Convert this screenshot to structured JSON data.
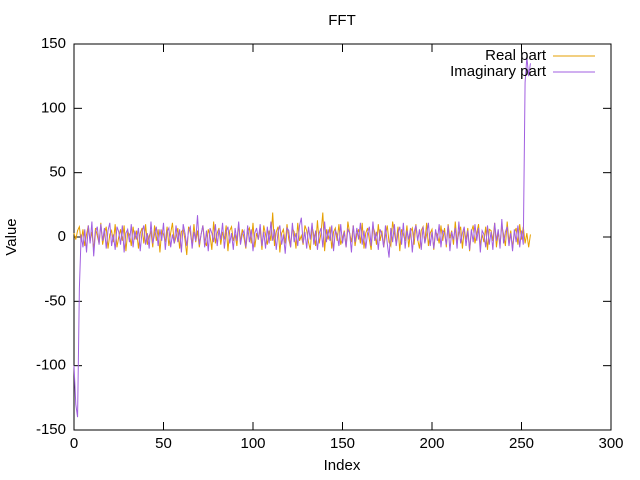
{
  "chart_data": {
    "type": "line",
    "title": "FFT",
    "xlabel": "Index",
    "ylabel": "Value",
    "xlim": [
      0,
      300
    ],
    "xticks": [
      0,
      50,
      100,
      150,
      200,
      250,
      300
    ],
    "ylim": [
      -150,
      150
    ],
    "yticks": [
      -150,
      -100,
      -50,
      0,
      50,
      100,
      150
    ],
    "grid": false,
    "legend": "top-right",
    "x": [
      0,
      1,
      2,
      3,
      4,
      5,
      6,
      7,
      8,
      9,
      10,
      11,
      12,
      13,
      14,
      15,
      16,
      17,
      18,
      19,
      20,
      21,
      22,
      23,
      24,
      25,
      26,
      27,
      28,
      29,
      30,
      31,
      32,
      33,
      34,
      35,
      36,
      37,
      38,
      39,
      40,
      41,
      42,
      43,
      44,
      45,
      46,
      47,
      48,
      49,
      50,
      51,
      52,
      53,
      54,
      55,
      56,
      57,
      58,
      59,
      60,
      61,
      62,
      63,
      64,
      65,
      66,
      67,
      68,
      69,
      70,
      71,
      72,
      73,
      74,
      75,
      76,
      77,
      78,
      79,
      80,
      81,
      82,
      83,
      84,
      85,
      86,
      87,
      88,
      89,
      90,
      91,
      92,
      93,
      94,
      95,
      96,
      97,
      98,
      99,
      100,
      101,
      102,
      103,
      104,
      105,
      106,
      107,
      108,
      109,
      110,
      111,
      112,
      113,
      114,
      115,
      116,
      117,
      118,
      119,
      120,
      121,
      122,
      123,
      124,
      125,
      126,
      127,
      128,
      129,
      130,
      131,
      132,
      133,
      134,
      135,
      136,
      137,
      138,
      139,
      140,
      141,
      142,
      143,
      144,
      145,
      146,
      147,
      148,
      149,
      150,
      151,
      152,
      153,
      154,
      155,
      156,
      157,
      158,
      159,
      160,
      161,
      162,
      163,
      164,
      165,
      166,
      167,
      168,
      169,
      170,
      171,
      172,
      173,
      174,
      175,
      176,
      177,
      178,
      179,
      180,
      181,
      182,
      183,
      184,
      185,
      186,
      187,
      188,
      189,
      190,
      191,
      192,
      193,
      194,
      195,
      196,
      197,
      198,
      199,
      200,
      201,
      202,
      203,
      204,
      205,
      206,
      207,
      208,
      209,
      210,
      211,
      212,
      213,
      214,
      215,
      216,
      217,
      218,
      219,
      220,
      221,
      222,
      223,
      224,
      225,
      226,
      227,
      228,
      229,
      230,
      231,
      232,
      233,
      234,
      235,
      236,
      237,
      238,
      239,
      240,
      241,
      242,
      243,
      244,
      245,
      246,
      247,
      248,
      249,
      250,
      251,
      252,
      253,
      254,
      255
    ],
    "series": [
      {
        "name": "Real part",
        "color": "#e69f00",
        "values": [
          3,
          -2,
          5,
          8,
          -4,
          6,
          -7,
          2,
          9,
          -3,
          4,
          -10,
          7,
          1,
          -5,
          11,
          -6,
          3,
          8,
          -9,
          2,
          5,
          -4,
          10,
          -8,
          0,
          6,
          -3,
          9,
          -11,
          4,
          2,
          -7,
          8,
          -2,
          5,
          -9,
          3,
          7,
          -5,
          10,
          -6,
          1,
          4,
          -8,
          9,
          -3,
          6,
          -12,
          5,
          2,
          -4,
          8,
          -7,
          3,
          11,
          -5,
          0,
          7,
          -9,
          4,
          6,
          -2,
          -14,
          8,
          3,
          -6,
          10,
          -4,
          5,
          -8,
          2,
          9,
          -3,
          -7,
          6,
          1,
          -10,
          12,
          -5,
          3,
          7,
          -6,
          4,
          -2,
          9,
          -11,
          5,
          8,
          -3,
          2,
          -7,
          10,
          -4,
          6,
          -1,
          -9,
          4,
          7,
          -5,
          11,
          -8,
          3,
          -2,
          6,
          -10,
          9,
          2,
          -6,
          5,
          -3,
          19,
          -7,
          4,
          8,
          -12,
          3,
          6,
          -5,
          10,
          -2,
          -8,
          7,
          4,
          -9,
          11,
          -3,
          1,
          -6,
          9,
          5,
          -4,
          -10,
          8,
          2,
          -7,
          13,
          -5,
          3,
          19,
          -11,
          6,
          -2,
          8,
          -9,
          4,
          7,
          -3,
          10,
          -6,
          -1,
          5,
          -8,
          12,
          3,
          -4,
          9,
          -7,
          2,
          6,
          -5,
          11,
          -9,
          3,
          7,
          -2,
          -10,
          8,
          4,
          -6,
          10,
          -3,
          5,
          -8,
          1,
          9,
          -4,
          -7,
          12,
          3,
          -5,
          8,
          -11,
          6,
          2,
          -3,
          9,
          -8,
          4,
          7,
          -6,
          10,
          -2,
          -9,
          5,
          8,
          -4,
          11,
          -7,
          3,
          6,
          -10,
          4,
          2,
          -5,
          9,
          -3,
          7,
          -8,
          10,
          -1,
          5,
          -6,
          12,
          -4,
          3,
          8,
          -9,
          6,
          -2,
          7,
          -11,
          4,
          9,
          -5,
          3,
          10,
          -7,
          2,
          -4,
          8,
          -10,
          6,
          5,
          -3,
          11,
          -8,
          4,
          -6,
          9,
          2,
          -7,
          12,
          -4,
          5,
          -9,
          3,
          7,
          -6,
          10,
          -2,
          8,
          -5,
          3,
          -8,
          2
        ]
      },
      {
        "name": "Imaginary part",
        "color": "#a15fe0",
        "values": [
          -100,
          -130,
          -140,
          -40,
          2,
          -8,
          6,
          -12,
          9,
          -5,
          12,
          -15,
          4,
          8,
          -6,
          10,
          -3,
          7,
          -9,
          5,
          11,
          -7,
          2,
          -10,
          8,
          4,
          -6,
          9,
          -12,
          3,
          6,
          -4,
          10,
          -8,
          5,
          -2,
          7,
          -11,
          4,
          9,
          -6,
          3,
          -9,
          12,
          -5,
          2,
          8,
          -7,
          6,
          -3,
          11,
          -10,
          4,
          7,
          -8,
          2,
          -5,
          9,
          -4,
          6,
          -12,
          10,
          3,
          -7,
          5,
          8,
          -9,
          4,
          -3,
          17,
          -6,
          2,
          9,
          -8,
          5,
          -11,
          7,
          3,
          -4,
          10,
          -7,
          6,
          -2,
          11,
          -9,
          4,
          8,
          -5,
          3,
          -10,
          7,
          -3,
          12,
          -6,
          2,
          5,
          -8,
          9,
          -4,
          6,
          -11,
          3,
          7,
          -2,
          10,
          -7,
          4,
          -9,
          8,
          -5,
          12,
          -3,
          6,
          -10,
          4,
          9,
          -6,
          2,
          -13,
          7,
          5,
          -8,
          11,
          -4,
          3,
          -7,
          9,
          15,
          -5,
          4,
          -9,
          8,
          -2,
          11,
          -6,
          5,
          -10,
          3,
          7,
          -8,
          12,
          -4,
          6,
          -3,
          9,
          -11,
          5,
          2,
          -7,
          10,
          -5,
          4,
          -8,
          6,
          3,
          -12,
          9,
          -4,
          7,
          -2,
          11,
          -6,
          5,
          -9,
          3,
          8,
          -7,
          12,
          -3,
          4,
          -10,
          6,
          2,
          -8,
          9,
          -5,
          -16,
          7,
          -4,
          10,
          -7,
          3,
          8,
          -6,
          11,
          -9,
          5,
          -2,
          7,
          -12,
          4,
          9,
          -3,
          6,
          -10,
          8,
          -5,
          2,
          11,
          -7,
          4,
          -9,
          6,
          -3,
          10,
          -8,
          5,
          3,
          -6,
          9,
          -11,
          4,
          -2,
          7,
          -9,
          12,
          -5,
          3,
          8,
          -7,
          5,
          -10,
          6,
          -4,
          10,
          -3,
          7,
          -12,
          5,
          2,
          -8,
          9,
          -6,
          4,
          -10,
          11,
          -3,
          6,
          -9,
          14,
          -5,
          4,
          8,
          -7,
          3,
          -11,
          6,
          -4,
          9,
          -8,
          5,
          -6,
          120,
          140,
          125,
          135
        ]
      }
    ]
  }
}
